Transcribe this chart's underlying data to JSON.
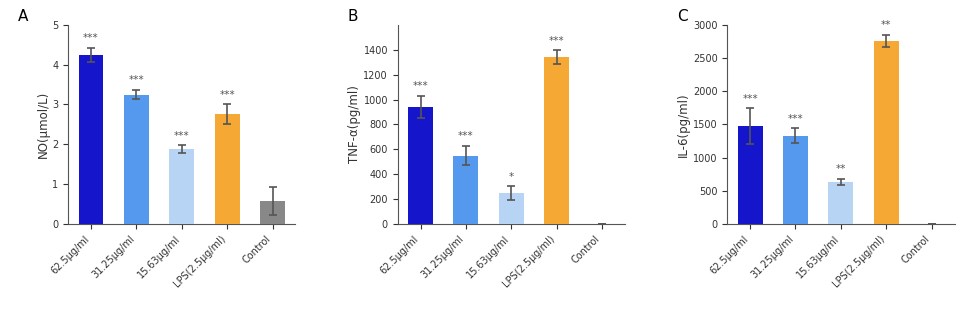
{
  "panel_A": {
    "label": "A",
    "categories": [
      "62.5μg/ml",
      "31.25μg/ml",
      "15.63μg/ml",
      "LPS(2.5μg/ml)",
      "Control"
    ],
    "values": [
      4.25,
      3.25,
      1.87,
      2.75,
      0.57
    ],
    "errors": [
      0.18,
      0.12,
      0.1,
      0.25,
      0.35
    ],
    "colors": [
      "#1515cc",
      "#5599ee",
      "#b8d4f5",
      "#f5a833",
      "#888888"
    ],
    "ylabel": "NO(μmol/L)",
    "ylim": [
      0,
      5
    ],
    "yticks": [
      0,
      1,
      2,
      3,
      4,
      5
    ],
    "significance": [
      "***",
      "***",
      "***",
      "***",
      ""
    ]
  },
  "panel_B": {
    "label": "B",
    "categories": [
      "62.5μg/ml",
      "31.25μg/ml",
      "15.63μg/ml",
      "LPS(2.5μg/ml)",
      "Control"
    ],
    "values": [
      940,
      550,
      250,
      1340,
      0
    ],
    "errors": [
      90,
      80,
      55,
      55,
      0
    ],
    "colors": [
      "#1515cc",
      "#5599ee",
      "#b8d4f5",
      "#f5a833",
      "#888888"
    ],
    "ylabel": "TNF-α(pg/ml)",
    "ylim": [
      0,
      1600
    ],
    "yticks": [
      0,
      200,
      400,
      600,
      800,
      1000,
      1200,
      1400
    ],
    "significance": [
      "***",
      "***",
      "*",
      "***",
      ""
    ]
  },
  "panel_C": {
    "label": "C",
    "categories": [
      "62.5μg/ml",
      "31.25μg/ml",
      "15.63μg/ml",
      "LPS(2.5μg/ml)",
      "Control"
    ],
    "values": [
      1470,
      1330,
      630,
      2760,
      0
    ],
    "errors": [
      270,
      110,
      50,
      90,
      0
    ],
    "colors": [
      "#1515cc",
      "#5599ee",
      "#b8d4f5",
      "#f5a833",
      "#888888"
    ],
    "ylabel": "IL-6(pg/ml)",
    "ylim": [
      0,
      3000
    ],
    "yticks": [
      0,
      500,
      1000,
      1500,
      2000,
      2500,
      3000
    ],
    "significance": [
      "***",
      "***",
      "**",
      "**",
      ""
    ]
  },
  "bar_width": 0.55,
  "elinewidth": 1.2,
  "capsize": 3,
  "capthick": 1.2,
  "ecolor": "#555555",
  "sig_fontsize": 7.5,
  "tick_fontsize": 7,
  "ylabel_fontsize": 8.5,
  "panel_label_fontsize": 11
}
